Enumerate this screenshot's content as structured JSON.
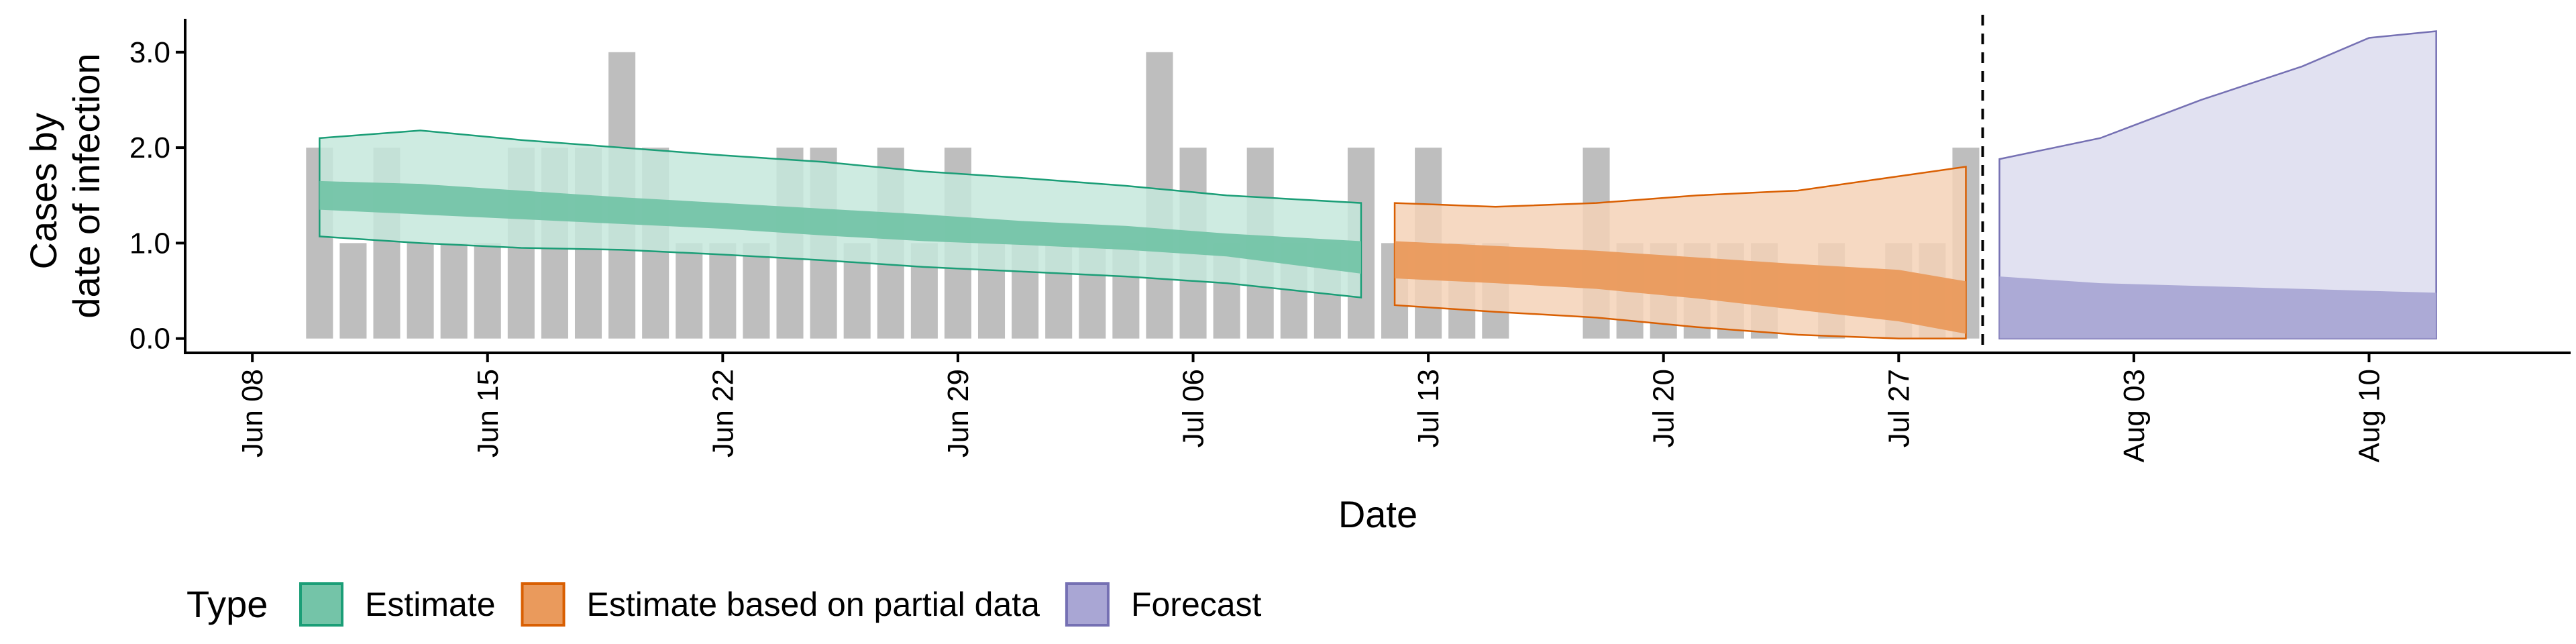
{
  "chart_data": {
    "type": "area",
    "title": "",
    "xlabel": "Date",
    "ylabel_lines": [
      "Cases by",
      "date of infection"
    ],
    "x_start": "Jun 08",
    "x_end": "Aug 14",
    "ylim": [
      -0.15,
      3.35
    ],
    "yticks": [
      {
        "value": 0.0,
        "label": "0.0"
      },
      {
        "value": 1.0,
        "label": "1.0"
      },
      {
        "value": 2.0,
        "label": "2.0"
      },
      {
        "value": 3.0,
        "label": "3.0"
      }
    ],
    "xticks": [
      {
        "date": "Jun 08",
        "label": "Jun 08"
      },
      {
        "date": "Jun 15",
        "label": "Jun 15"
      },
      {
        "date": "Jun 22",
        "label": "Jun 22"
      },
      {
        "date": "Jun 29",
        "label": "Jun 29"
      },
      {
        "date": "Jul 06",
        "label": "Jul 06"
      },
      {
        "date": "Jul 13",
        "label": "Jul 13"
      },
      {
        "date": "Jul 20",
        "label": "Jul 20"
      },
      {
        "date": "Jul 27",
        "label": "Jul 27"
      },
      {
        "date": "Aug 03",
        "label": "Aug 03"
      },
      {
        "date": "Aug 10",
        "label": "Aug 10"
      }
    ],
    "vline_date": "Jul 29",
    "reported_cases": [
      {
        "date": "Jun 10",
        "value": 2
      },
      {
        "date": "Jun 11",
        "value": 1
      },
      {
        "date": "Jun 12",
        "value": 2
      },
      {
        "date": "Jun 13",
        "value": 1
      },
      {
        "date": "Jun 14",
        "value": 1
      },
      {
        "date": "Jun 15",
        "value": 1
      },
      {
        "date": "Jun 16",
        "value": 2
      },
      {
        "date": "Jun 17",
        "value": 2
      },
      {
        "date": "Jun 18",
        "value": 2
      },
      {
        "date": "Jun 19",
        "value": 3
      },
      {
        "date": "Jun 20",
        "value": 2
      },
      {
        "date": "Jun 21",
        "value": 1
      },
      {
        "date": "Jun 22",
        "value": 1
      },
      {
        "date": "Jun 23",
        "value": 1
      },
      {
        "date": "Jun 24",
        "value": 2
      },
      {
        "date": "Jun 25",
        "value": 2
      },
      {
        "date": "Jun 26",
        "value": 1
      },
      {
        "date": "Jun 27",
        "value": 2
      },
      {
        "date": "Jun 28",
        "value": 1
      },
      {
        "date": "Jun 29",
        "value": 2
      },
      {
        "date": "Jun 30",
        "value": 1
      },
      {
        "date": "Jul 01",
        "value": 1
      },
      {
        "date": "Jul 02",
        "value": 1
      },
      {
        "date": "Jul 03",
        "value": 1
      },
      {
        "date": "Jul 04",
        "value": 1
      },
      {
        "date": "Jul 05",
        "value": 3
      },
      {
        "date": "Jul 06",
        "value": 2
      },
      {
        "date": "Jul 07",
        "value": 1
      },
      {
        "date": "Jul 08",
        "value": 2
      },
      {
        "date": "Jul 09",
        "value": 1
      },
      {
        "date": "Jul 10",
        "value": 1
      },
      {
        "date": "Jul 11",
        "value": 2
      },
      {
        "date": "Jul 12",
        "value": 1
      },
      {
        "date": "Jul 13",
        "value": 2
      },
      {
        "date": "Jul 14",
        "value": 1
      },
      {
        "date": "Jul 15",
        "value": 1
      },
      {
        "date": "Jul 18",
        "value": 2
      },
      {
        "date": "Jul 19",
        "value": 1
      },
      {
        "date": "Jul 20",
        "value": 1
      },
      {
        "date": "Jul 21",
        "value": 1
      },
      {
        "date": "Jul 22",
        "value": 1
      },
      {
        "date": "Jul 23",
        "value": 1
      },
      {
        "date": "Jul 25",
        "value": 1
      },
      {
        "date": "Jul 27",
        "value": 1
      },
      {
        "date": "Jul 28",
        "value": 1
      },
      {
        "date": "Jul 29",
        "value": 2
      }
    ],
    "series": [
      {
        "name": "Estimate",
        "color": "#1b9e77",
        "outer_fill": "#c5e8dc",
        "inner_fill": "#74c4a8",
        "outline": "#1b9e77",
        "points": [
          {
            "date": "Jun 10",
            "outer_low": 1.07,
            "outer_high": 2.1,
            "inner_low": 1.35,
            "inner_high": 1.65
          },
          {
            "date": "Jun 13",
            "outer_low": 1.0,
            "outer_high": 2.18,
            "inner_low": 1.3,
            "inner_high": 1.62
          },
          {
            "date": "Jun 16",
            "outer_low": 0.95,
            "outer_high": 2.08,
            "inner_low": 1.25,
            "inner_high": 1.55
          },
          {
            "date": "Jun 19",
            "outer_low": 0.93,
            "outer_high": 2.0,
            "inner_low": 1.2,
            "inner_high": 1.48
          },
          {
            "date": "Jun 22",
            "outer_low": 0.88,
            "outer_high": 1.92,
            "inner_low": 1.15,
            "inner_high": 1.42
          },
          {
            "date": "Jun 25",
            "outer_low": 0.82,
            "outer_high": 1.85,
            "inner_low": 1.08,
            "inner_high": 1.36
          },
          {
            "date": "Jun 28",
            "outer_low": 0.75,
            "outer_high": 1.75,
            "inner_low": 1.02,
            "inner_high": 1.3
          },
          {
            "date": "Jul 01",
            "outer_low": 0.7,
            "outer_high": 1.68,
            "inner_low": 0.98,
            "inner_high": 1.23
          },
          {
            "date": "Jul 04",
            "outer_low": 0.65,
            "outer_high": 1.6,
            "inner_low": 0.93,
            "inner_high": 1.18
          },
          {
            "date": "Jul 07",
            "outer_low": 0.58,
            "outer_high": 1.5,
            "inner_low": 0.86,
            "inner_high": 1.1
          },
          {
            "date": "Jul 11",
            "outer_low": 0.43,
            "outer_high": 1.42,
            "inner_low": 0.68,
            "inner_high": 1.02
          }
        ]
      },
      {
        "name": "Estimate based on partial data",
        "color": "#d95f02",
        "outer_fill": "#f5d2b7",
        "inner_fill": "#ea9a5c",
        "outline": "#d95f02",
        "points": [
          {
            "date": "Jul 12",
            "outer_low": 0.35,
            "outer_high": 1.42,
            "inner_low": 0.63,
            "inner_high": 1.02
          },
          {
            "date": "Jul 15",
            "outer_low": 0.28,
            "outer_high": 1.38,
            "inner_low": 0.58,
            "inner_high": 0.97
          },
          {
            "date": "Jul 18",
            "outer_low": 0.22,
            "outer_high": 1.42,
            "inner_low": 0.52,
            "inner_high": 0.92
          },
          {
            "date": "Jul 21",
            "outer_low": 0.12,
            "outer_high": 1.5,
            "inner_low": 0.42,
            "inner_high": 0.85
          },
          {
            "date": "Jul 24",
            "outer_low": 0.04,
            "outer_high": 1.55,
            "inner_low": 0.3,
            "inner_high": 0.78
          },
          {
            "date": "Jul 27",
            "outer_low": 0.0,
            "outer_high": 1.7,
            "inner_low": 0.18,
            "inner_high": 0.72
          },
          {
            "date": "Jul 29",
            "outer_low": 0.0,
            "outer_high": 1.8,
            "inner_low": 0.05,
            "inner_high": 0.6
          }
        ]
      },
      {
        "name": "Forecast",
        "color": "#7570b3",
        "outer_fill": "#dcdcee",
        "inner_fill": "#a9a6d4",
        "outline": "#7570b3",
        "points": [
          {
            "date": "Jul 30",
            "outer_low": 0.0,
            "outer_high": 1.88,
            "inner_low": 0.0,
            "inner_high": 0.65
          },
          {
            "date": "Aug 02",
            "outer_low": 0.0,
            "outer_high": 2.1,
            "inner_low": 0.0,
            "inner_high": 0.58
          },
          {
            "date": "Aug 05",
            "outer_low": 0.0,
            "outer_high": 2.5,
            "inner_low": 0.0,
            "inner_high": 0.55
          },
          {
            "date": "Aug 08",
            "outer_low": 0.0,
            "outer_high": 2.85,
            "inner_low": 0.0,
            "inner_high": 0.52
          },
          {
            "date": "Aug 10",
            "outer_low": 0.0,
            "outer_high": 3.15,
            "inner_low": 0.0,
            "inner_high": 0.5
          },
          {
            "date": "Aug 12",
            "outer_low": 0.0,
            "outer_high": 3.22,
            "inner_low": 0.0,
            "inner_high": 0.48
          }
        ]
      }
    ],
    "legend": {
      "title": "Type",
      "position": "bottom-left",
      "entries": [
        "Estimate",
        "Estimate based on partial data",
        "Forecast"
      ]
    },
    "grid": false,
    "bar_color": "#bebebe"
  }
}
